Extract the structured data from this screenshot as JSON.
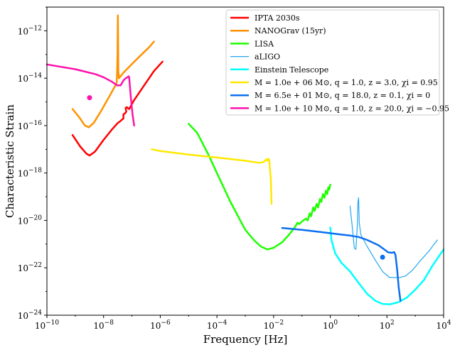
{
  "chart_data": {
    "type": "line",
    "xlabel": "Frequency [Hz]",
    "ylabel": "Characteristic Strain",
    "xscale": "log",
    "yscale": "log",
    "xlim": [
      1e-10,
      10000.0
    ],
    "ylim": [
      1e-24,
      1e-11
    ],
    "legend_position": "top-right",
    "grid": false,
    "x_ticks": [
      {
        "value": 1e-10,
        "base": "10",
        "exp": "−10"
      },
      {
        "value": 1e-08,
        "base": "10",
        "exp": "−8"
      },
      {
        "value": 1e-06,
        "base": "10",
        "exp": "−6"
      },
      {
        "value": 0.0001,
        "base": "10",
        "exp": "−4"
      },
      {
        "value": 0.01,
        "base": "10",
        "exp": "−2"
      },
      {
        "value": 1,
        "base": "10",
        "exp": "0"
      },
      {
        "value": 100,
        "base": "10",
        "exp": "2"
      },
      {
        "value": 10000,
        "base": "10",
        "exp": "4"
      }
    ],
    "y_ticks": [
      {
        "value": 1e-24,
        "base": "10",
        "exp": "−24"
      },
      {
        "value": 1e-22,
        "base": "10",
        "exp": "−22"
      },
      {
        "value": 1e-20,
        "base": "10",
        "exp": "−20"
      },
      {
        "value": 1e-18,
        "base": "10",
        "exp": "−18"
      },
      {
        "value": 1e-16,
        "base": "10",
        "exp": "−16"
      },
      {
        "value": 1e-14,
        "base": "10",
        "exp": "−14"
      },
      {
        "value": 1e-12,
        "base": "10",
        "exp": "−12"
      }
    ],
    "series": [
      {
        "name": "IPTA  2030s",
        "color": "#ff0000",
        "width": 2.5,
        "points": [
          [
            8e-10,
            4e-17
          ],
          [
            1.5e-09,
            1.3e-17
          ],
          [
            2.5e-09,
            6.5e-18
          ],
          [
            3.2e-09,
            5.5e-18
          ],
          [
            5e-09,
            8e-18
          ],
          [
            1e-08,
            2.5e-17
          ],
          [
            2e-08,
            7e-17
          ],
          [
            3.2e-08,
            1.3e-16
          ],
          [
            3.8e-08,
            1.5e-16
          ],
          [
            4.5e-08,
            1.8e-16
          ],
          [
            5e-08,
            2e-16
          ],
          [
            5e-08,
            3e-16
          ],
          [
            5.5e-08,
            3.2e-16
          ],
          [
            6e-08,
            3.5e-16
          ],
          [
            6.3e-08,
            4e-16
          ],
          [
            6e-08,
            5.5e-16
          ],
          [
            6.5e-08,
            6e-16
          ],
          [
            8e-08,
            5e-16
          ],
          [
            1.2e-07,
            1.2e-15
          ],
          [
            3e-07,
            6e-15
          ],
          [
            6e-07,
            2e-14
          ],
          [
            1.2e-06,
            5e-14
          ]
        ]
      },
      {
        "name": "NANOGrav (15yr)",
        "color": "#ff9200",
        "width": 2.5,
        "points": [
          [
            8e-10,
            5e-16
          ],
          [
            1.4e-09,
            2.2e-16
          ],
          [
            2.2e-09,
            1e-16
          ],
          [
            3e-09,
            8.5e-17
          ],
          [
            4.5e-09,
            1.3e-16
          ],
          [
            8e-09,
            4e-16
          ],
          [
            1.5e-08,
            1.5e-15
          ],
          [
            2.5e-08,
            4.5e-15
          ],
          [
            2.9e-08,
            6.5e-15
          ],
          [
            3e-08,
            1.5e-14
          ],
          [
            3.1e-08,
            1e-13
          ],
          [
            3.15e-08,
            1e-12
          ],
          [
            3.2e-08,
            4.5e-12
          ],
          [
            3.25e-08,
            5e-13
          ],
          [
            3.3e-08,
            2e-14
          ],
          [
            3.5e-08,
            1e-14
          ],
          [
            5e-08,
            1.7e-14
          ],
          [
            1e-07,
            4e-14
          ],
          [
            2e-07,
            9e-14
          ],
          [
            4e-07,
            2e-13
          ],
          [
            6e-07,
            3.5e-13
          ]
        ]
      },
      {
        "name": "LISA",
        "color": "#1dff00",
        "width": 2.5,
        "points": [
          [
            1e-05,
            1.2e-16
          ],
          [
            2e-05,
            5e-17
          ],
          [
            5e-05,
            6e-18
          ],
          [
            0.0001,
            1e-18
          ],
          [
            0.0003,
            6e-20
          ],
          [
            0.001,
            4e-21
          ],
          [
            0.002,
            1.5e-21
          ],
          [
            0.0035,
            8e-22
          ],
          [
            0.006,
            6e-22
          ],
          [
            0.01,
            7e-22
          ],
          [
            0.02,
            1.2e-21
          ],
          [
            0.035,
            2.5e-21
          ],
          [
            0.055,
            5e-21
          ],
          [
            0.07,
            8e-21
          ],
          [
            0.08,
            7e-21
          ],
          [
            0.1,
            9e-21
          ],
          [
            0.14,
            1.2e-20
          ],
          [
            0.16,
            1e-20
          ],
          [
            0.19,
            2e-20
          ],
          [
            0.21,
            1.5e-20
          ],
          [
            0.25,
            3.5e-20
          ],
          [
            0.28,
            2.5e-20
          ],
          [
            0.33,
            5e-20
          ],
          [
            0.37,
            3.5e-20
          ],
          [
            0.43,
            8e-20
          ],
          [
            0.48,
            6e-20
          ],
          [
            0.55,
            1.3e-19
          ],
          [
            0.62,
            9e-20
          ],
          [
            0.7,
            1.8e-19
          ],
          [
            0.78,
            1.3e-19
          ],
          [
            0.85,
            2.5e-19
          ],
          [
            0.92,
            2e-19
          ],
          [
            1.0,
            3.2e-19
          ]
        ]
      },
      {
        "name": "aLIGO",
        "color": "#23a6f0",
        "width": 1.2,
        "points": [
          [
            5.0,
            4e-20
          ],
          [
            6.0,
            5e-21
          ],
          [
            7.0,
            7e-22
          ],
          [
            8.0,
            6e-22
          ],
          [
            9.0,
            6e-21
          ],
          [
            9.5,
            6e-20
          ],
          [
            10.0,
            9e-20
          ],
          [
            10.5,
            8e-21
          ],
          [
            12.0,
            2.5e-21
          ],
          [
            20.0,
            8e-22
          ],
          [
            40.0,
            2e-22
          ],
          [
            70.0,
            7e-23
          ],
          [
            120.0,
            4e-23
          ],
          [
            250.0,
            3.8e-23
          ],
          [
            450.0,
            4.5e-23
          ],
          [
            800.0,
            8e-23
          ],
          [
            1500.0,
            2e-22
          ],
          [
            3000.0,
            5e-22
          ],
          [
            6000.0,
            1.5e-21
          ]
        ]
      },
      {
        "name": "Einstein Telescope",
        "color": "#00ffff",
        "width": 2.5,
        "points": [
          [
            1.0,
            5e-21
          ],
          [
            1.1,
            1.5e-21
          ],
          [
            1.5,
            4e-22
          ],
          [
            2.5,
            1.6e-22
          ],
          [
            5.0,
            7e-23
          ],
          [
            10.0,
            2.3e-23
          ],
          [
            20.0,
            8e-24
          ],
          [
            40.0,
            4e-24
          ],
          [
            70.0,
            3e-24
          ],
          [
            130.0,
            2.9e-24
          ],
          [
            250.0,
            3.5e-24
          ],
          [
            500.0,
            5.5e-24
          ],
          [
            1000.0,
            1.2e-23
          ],
          [
            2000.0,
            3e-23
          ],
          [
            4000.0,
            1.2e-22
          ],
          [
            10000.0,
            6e-22
          ]
        ]
      },
      {
        "name": "M = 1.0e + 06 M⊙, q = 1.0, z = 3.0, χi = 0.95",
        "color": "#ffe800",
        "width": 2.5,
        "points": [
          [
            5e-07,
            1e-17
          ],
          [
            1e-06,
            8.5e-18
          ],
          [
            1e-05,
            6e-18
          ],
          [
            0.0001,
            4.5e-18
          ],
          [
            0.001,
            3.3e-18
          ],
          [
            0.003,
            2.7e-18
          ],
          [
            0.0045,
            2.9e-18
          ],
          [
            0.0055,
            3.8e-18
          ],
          [
            0.006,
            3.3e-18
          ],
          [
            0.0065,
            4e-18
          ],
          [
            0.007,
            3.5e-18
          ],
          [
            0.008,
            5e-19
          ],
          [
            0.0085,
            5e-20
          ]
        ]
      },
      {
        "name": "M = 6.5e + 01 M⊙, q = 18.0, z = 0.1, χi = 0",
        "color": "#0a6ff2",
        "width": 2.5,
        "points": [
          [
            0.02,
            4.8e-21
          ],
          [
            0.1,
            4e-21
          ],
          [
            0.5,
            3.2e-21
          ],
          [
            2.0,
            2.6e-21
          ],
          [
            5.0,
            2.3e-21
          ],
          [
            10.0,
            2e-21
          ],
          [
            20.0,
            1.5e-21
          ],
          [
            50.0,
            9e-22
          ],
          [
            80.0,
            6e-22
          ],
          [
            110.0,
            4.5e-22
          ],
          [
            150.0,
            4.3e-22
          ],
          [
            180.0,
            4.6e-22
          ],
          [
            200.0,
            3.5e-22
          ],
          [
            230.0,
            8e-23
          ],
          [
            260.0,
            1.5e-23
          ],
          [
            300.0,
            4e-24
          ]
        ]
      },
      {
        "name": "M = 1.0e + 10 M⊙, q = 1.0, z = 20.0, χi = −0.95",
        "color": "#ff11aa",
        "width": 2.5,
        "points": [
          [
            1e-10,
            3.8e-14
          ],
          [
            1e-09,
            2.4e-14
          ],
          [
            5e-09,
            1.5e-14
          ],
          [
            1e-08,
            1.1e-14
          ],
          [
            2e-08,
            7e-15
          ],
          [
            3e-08,
            5e-15
          ],
          [
            4e-08,
            5e-15
          ],
          [
            5e-08,
            8e-15
          ],
          [
            6e-08,
            1e-14
          ],
          [
            7e-08,
            1.1e-14
          ],
          [
            7.6e-08,
            1.2e-14
          ],
          [
            8e-08,
            1.1e-14
          ],
          [
            9e-08,
            2e-15
          ],
          [
            1.05e-07,
            3e-16
          ],
          [
            1.2e-07,
            1e-16
          ]
        ]
      }
    ],
    "points": [
      {
        "x": 3.2e-09,
        "y": 1.5e-15,
        "color": "#ff11aa"
      },
      {
        "x": 70.0,
        "y": 2.8e-22,
        "color": "#0a6ff2"
      }
    ]
  }
}
